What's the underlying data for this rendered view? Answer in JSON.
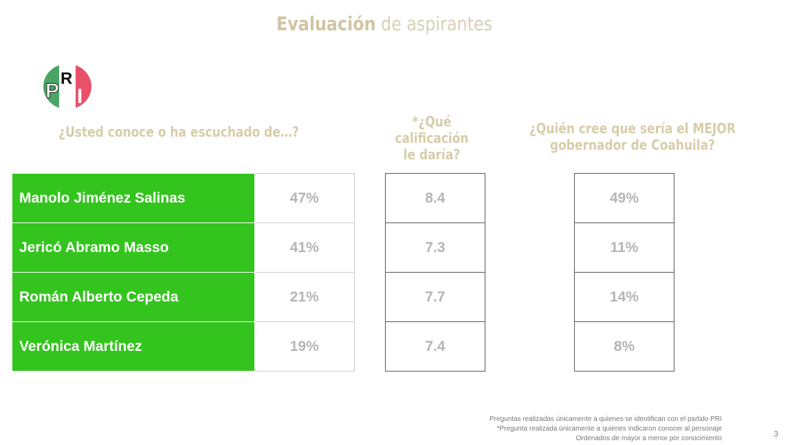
{
  "title": {
    "bold": "Evaluación",
    "rest": " de aspirantes"
  },
  "logo": {
    "text": "PRI",
    "colors": {
      "green": "#4aa564",
      "red": "#e9506a"
    }
  },
  "questions": {
    "q1": "¿Usted conoce o ha escuchado de…?",
    "q2": "*¿Qué calificación le daría?",
    "q3": "¿Quién cree que sería el MEJOR gobernador de Coahuila?"
  },
  "accent": "#34c41e",
  "rows": [
    {
      "name": "Manolo Jiménez Salinas",
      "conoce": "47%",
      "calificacion": "8.4",
      "mejor": "49%"
    },
    {
      "name": "Jericó Abramo Masso",
      "conoce": "41%",
      "calificacion": "7.3",
      "mejor": "11%"
    },
    {
      "name": "Román Alberto Cepeda",
      "conoce": "21%",
      "calificacion": "7.7",
      "mejor": "14%"
    },
    {
      "name": "Verónica Martínez",
      "conoce": "19%",
      "calificacion": "7.4",
      "mejor": "8%"
    }
  ],
  "notes": [
    "Preguntas realizadas únicamente a quienes se identifican con el partido PRI",
    "*Pregunta realizada únicamente a quienes indicaron conocer al personaje",
    "Ordenados de mayor a menor por conocimiento"
  ],
  "page_number": "3"
}
